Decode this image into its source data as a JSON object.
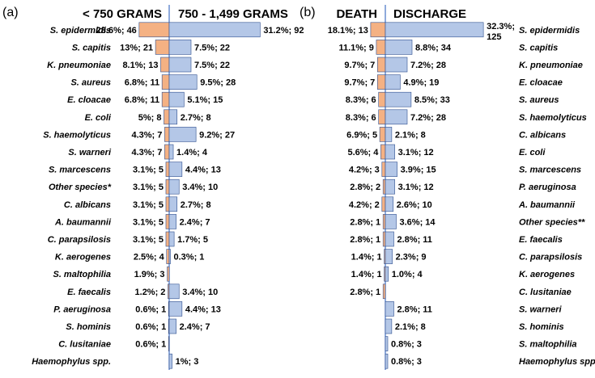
{
  "colors": {
    "orange": "#f4b183",
    "blue": "#b4c7e7",
    "stroke": "#2f4f8f",
    "divider": "#4472c4"
  },
  "chart_data": [
    {
      "type": "bar",
      "panel_label": "(a)",
      "left_header": "< 750 GRAMS",
      "right_header": "750 - 1,499 GRAMS",
      "categories": [
        "S. epidermidis",
        "S. capitis",
        "K. pneumoniae",
        "S. aureus",
        "E. cloacae",
        "E. coli",
        "S. haemolyticus",
        "S. warneri",
        "S. marcescens",
        "Other species*",
        "C. albicans",
        "A. baumannii",
        "C. parapsilosis",
        "K. aerogenes",
        "S. maltophilia",
        "E. faecalis",
        "P. aeruginosa",
        "S. hominis",
        "C. lusitaniae",
        "Haemophylus spp."
      ],
      "series": [
        {
          "name": "< 750 GRAMS",
          "side": "left",
          "values": [
            28.6,
            13,
            8.1,
            6.8,
            6.8,
            5,
            4.3,
            4.3,
            3.1,
            3.1,
            3.1,
            3.1,
            3.1,
            2.5,
            1.9,
            1.2,
            0.6,
            0.6,
            0.6,
            0
          ],
          "labels": [
            "28.6%; 46",
            "13%; 21",
            "8.1%; 13",
            "6.8%; 11",
            "6.8%; 11",
            "5%; 8",
            "4.3%; 7",
            "4.3%; 7",
            "3.1%; 5",
            "3.1%; 5",
            "3.1%; 5",
            "3.1%; 5",
            "3.1%; 5",
            "2.5%; 4",
            "1.9%; 3",
            "1.2%; 2",
            "0.6%; 1",
            "0.6%; 1",
            "0.6%; 1",
            ""
          ]
        },
        {
          "name": "750 - 1,499 GRAMS",
          "side": "right",
          "values": [
            31.2,
            7.5,
            7.5,
            9.5,
            5.1,
            2.7,
            9.2,
            1.4,
            4.4,
            3.4,
            2.7,
            2.4,
            1.7,
            0.3,
            0,
            3.4,
            4.4,
            2.4,
            0,
            1
          ],
          "labels": [
            "31.2%; 92",
            "7.5%; 22",
            "7.5%; 22",
            "9.5%; 28",
            "5.1%; 15",
            "2.7%; 8",
            "9.2%; 27",
            "1.4%; 4",
            "4.4%; 13",
            "3.4%; 10",
            "2.7%; 8",
            "2.4%; 7",
            "1.7%; 5",
            "0.3%; 1",
            "",
            "3.4%; 10",
            "4.4%; 13",
            "2.4%; 7",
            "",
            "1%; 3"
          ]
        }
      ]
    },
    {
      "type": "bar",
      "panel_label": "(b)",
      "left_header": "DEATH",
      "right_header": "DISCHARGE",
      "categories": [
        "S. epidermidis",
        "S. capitis",
        "K. pneumoniae",
        "E. cloacae",
        "S. aureus",
        "S. haemolyticus",
        "C. albicans",
        "E. coli",
        "S. marcescens",
        "P. aeruginosa",
        "A. baumannii",
        "Other species**",
        "E. faecalis",
        "C. parapsilosis",
        "K. aerogenes",
        "C. lusitaniae",
        "S. warneri",
        "S. hominis",
        "S. maltophilia",
        "Haemophylus spp."
      ],
      "series": [
        {
          "name": "DEATH",
          "side": "left",
          "values": [
            18.1,
            11.1,
            9.7,
            9.7,
            8.3,
            8.3,
            6.9,
            5.6,
            4.2,
            2.8,
            4.2,
            2.8,
            2.8,
            1.4,
            1.4,
            2.8,
            0,
            0,
            0,
            0
          ],
          "labels": [
            "18.1%; 13",
            "11.1%; 9",
            "9.7%; 7",
            "9.7%; 7",
            "8.3%; 6",
            "8.3%; 6",
            "6.9%; 5",
            "5.6%; 4",
            "4.2%; 3",
            "2.8%; 2",
            "4.2%; 2",
            "2.8%; 1",
            "2.8%; 1",
            "1.4%; 1",
            "1.4%; 1",
            "2.8%; 1",
            "",
            "",
            "",
            ""
          ]
        },
        {
          "name": "DISCHARGE",
          "side": "right",
          "values": [
            32.3,
            8.8,
            7.2,
            4.9,
            8.5,
            7.2,
            2.1,
            3.1,
            3.9,
            3.1,
            2.6,
            3.6,
            2.8,
            2.3,
            1,
            0,
            2.8,
            2.1,
            0.8,
            0.8
          ],
          "labels": [
            "32.3%; 125",
            "8.8%; 34",
            "7.2%; 28",
            "4.9%; 19",
            "8.5%; 33",
            "7.2%; 28",
            "2.1%; 8",
            "3.1%; 12",
            "3.9%; 15",
            "3.1%; 12",
            "2.6%; 10",
            "3.6%; 14",
            "2.8%; 11",
            "2.3%; 9",
            "1.0%; 4",
            "",
            "2.8%; 11",
            "2.1%; 8",
            "0.8%; 3",
            "0.8%; 3"
          ]
        }
      ]
    }
  ]
}
